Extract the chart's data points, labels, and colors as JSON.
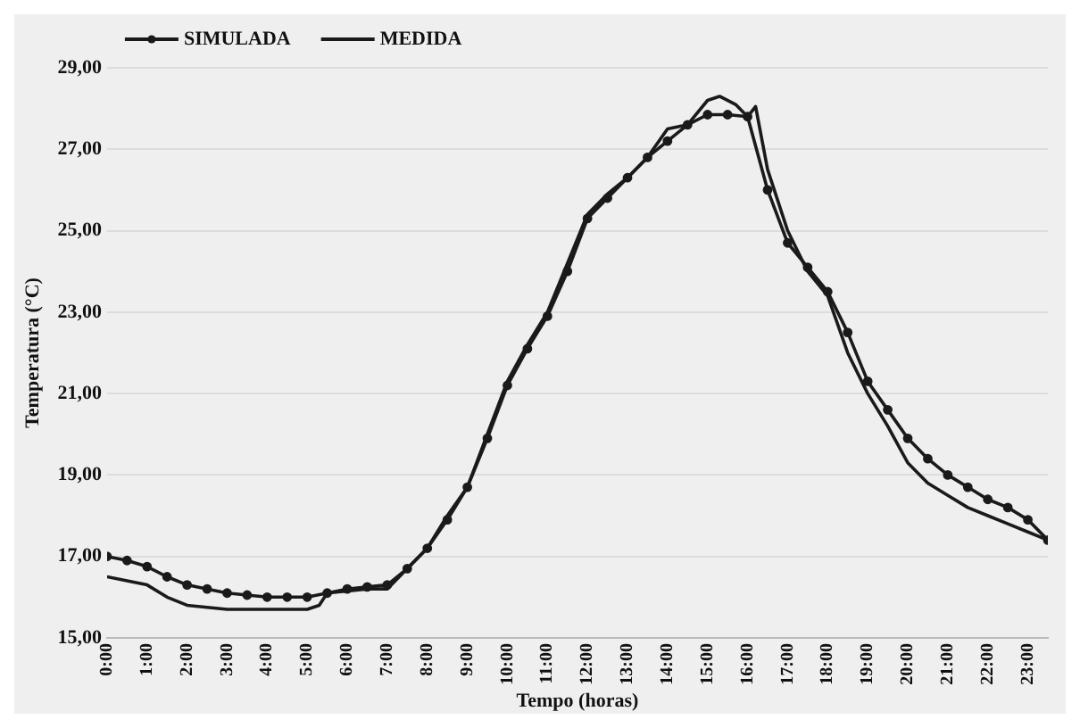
{
  "chart_data": {
    "type": "line",
    "xlabel": "Tempo (horas)",
    "ylabel": "Temperatura (°C)",
    "xlim": [
      0,
      23.5
    ],
    "xticks": [
      {
        "value": 0,
        "label": "0:00"
      },
      {
        "value": 1,
        "label": "1:00"
      },
      {
        "value": 2,
        "label": "2:00"
      },
      {
        "value": 3,
        "label": "3:00"
      },
      {
        "value": 4,
        "label": "4:00"
      },
      {
        "value": 5,
        "label": "5:00"
      },
      {
        "value": 6,
        "label": "6:00"
      },
      {
        "value": 7,
        "label": "7:00"
      },
      {
        "value": 8,
        "label": "8:00"
      },
      {
        "value": 9,
        "label": "9:00"
      },
      {
        "value": 10,
        "label": "10:00"
      },
      {
        "value": 11,
        "label": "11:00"
      },
      {
        "value": 12,
        "label": "12:00"
      },
      {
        "value": 13,
        "label": "13:00"
      },
      {
        "value": 14,
        "label": "14:00"
      },
      {
        "value": 15,
        "label": "15:00"
      },
      {
        "value": 16,
        "label": "16:00"
      },
      {
        "value": 17,
        "label": "17:00"
      },
      {
        "value": 18,
        "label": "18:00"
      },
      {
        "value": 19,
        "label": "19:00"
      },
      {
        "value": 20,
        "label": "20:00"
      },
      {
        "value": 21,
        "label": "21:00"
      },
      {
        "value": 22,
        "label": "22:00"
      },
      {
        "value": 23,
        "label": "23:00"
      }
    ],
    "ylim": [
      15,
      29
    ],
    "yticks": [
      {
        "value": 15,
        "label": "15,00"
      },
      {
        "value": 17,
        "label": "17,00"
      },
      {
        "value": 19,
        "label": "19,00"
      },
      {
        "value": 21,
        "label": "21,00"
      },
      {
        "value": 23,
        "label": "23,00"
      },
      {
        "value": 25,
        "label": "25,00"
      },
      {
        "value": 27,
        "label": "27,00"
      },
      {
        "value": 29,
        "label": "29,00"
      }
    ],
    "grid": "y",
    "legend": "top left",
    "series": [
      {
        "name": "SIMULADA",
        "color": "#1a1a1a",
        "marker": "circle",
        "x": [
          0,
          0.5,
          1,
          1.5,
          2,
          2.5,
          3,
          3.5,
          4,
          4.5,
          5,
          5.5,
          6,
          6.5,
          7,
          7.5,
          8,
          8.5,
          9,
          9.5,
          10,
          10.5,
          11,
          11.5,
          12,
          12.5,
          13,
          13.5,
          14,
          14.5,
          15,
          15.5,
          16,
          16.5,
          17,
          17.5,
          18,
          18.5,
          19,
          19.5,
          20,
          20.5,
          21,
          21.5,
          22,
          22.5,
          23,
          23.5
        ],
        "values": [
          17.0,
          16.9,
          16.75,
          16.5,
          16.3,
          16.2,
          16.1,
          16.05,
          16.0,
          16.0,
          16.0,
          16.1,
          16.2,
          16.25,
          16.3,
          16.7,
          17.2,
          17.9,
          18.7,
          19.9,
          21.2,
          22.1,
          22.9,
          24.0,
          25.3,
          25.8,
          26.3,
          26.8,
          27.2,
          27.6,
          27.85,
          27.85,
          27.8,
          26.0,
          24.7,
          24.1,
          23.5,
          22.5,
          21.3,
          20.6,
          19.9,
          19.4,
          19.0,
          18.7,
          18.4,
          18.2,
          17.9,
          17.4
        ]
      },
      {
        "name": "MEDIDA",
        "color": "#1a1a1a",
        "marker": "none",
        "x": [
          0,
          0.5,
          1,
          1.5,
          2,
          2.5,
          3,
          3.5,
          4,
          4.5,
          5,
          5.3,
          5.5,
          6,
          6.5,
          7,
          7.5,
          8,
          8.5,
          9,
          9.5,
          10,
          10.5,
          11,
          11.5,
          12,
          12.5,
          13,
          13.5,
          14,
          14.5,
          15,
          15.3,
          15.7,
          16,
          16.2,
          16.5,
          17,
          17.5,
          18,
          18.5,
          19,
          19.5,
          20,
          20.5,
          21,
          21.5,
          22,
          22.5,
          23,
          23.5
        ],
        "values": [
          16.5,
          16.4,
          16.3,
          16.0,
          15.8,
          15.75,
          15.7,
          15.7,
          15.7,
          15.7,
          15.7,
          15.8,
          16.1,
          16.15,
          16.2,
          16.2,
          16.7,
          17.2,
          18.0,
          18.7,
          20.0,
          21.3,
          22.2,
          23.0,
          24.2,
          25.4,
          25.9,
          26.3,
          26.8,
          27.5,
          27.6,
          28.2,
          28.3,
          28.1,
          27.8,
          28.05,
          26.5,
          25.0,
          24.0,
          23.4,
          22.0,
          21.0,
          20.2,
          19.3,
          18.8,
          18.5,
          18.2,
          18.0,
          17.8,
          17.6,
          17.4
        ]
      }
    ]
  }
}
